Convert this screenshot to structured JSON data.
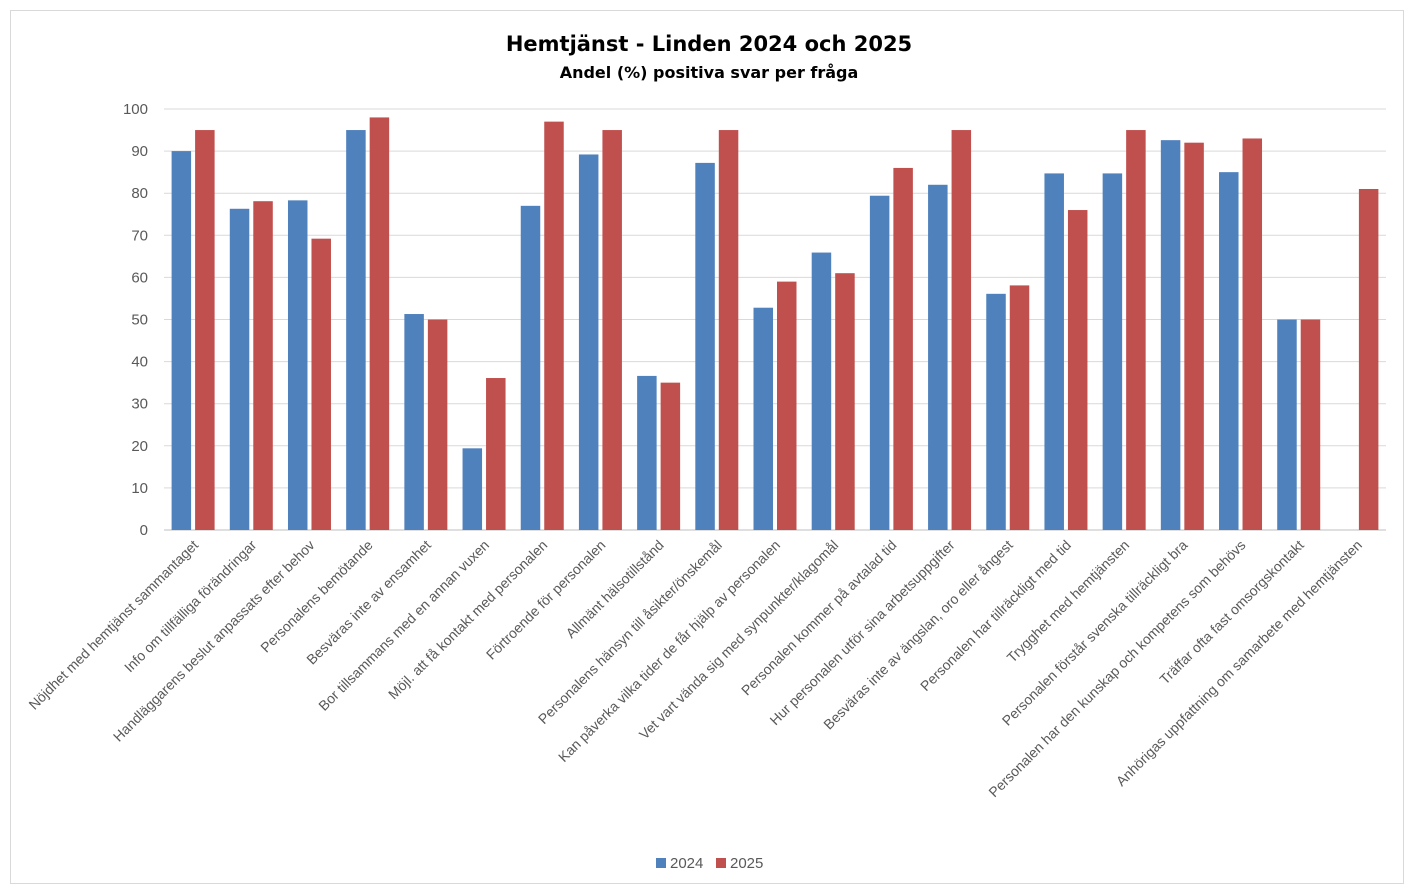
{
  "chart_data": {
    "type": "bar",
    "title": "Hemtjänst - Linden 2024 och 2025",
    "subtitle": "Andel (%) positiva svar per fråga",
    "xlabel": "",
    "ylabel": "",
    "ylim": [
      0,
      100
    ],
    "yticks": [
      "0",
      "10",
      "20",
      "30",
      "40",
      "50",
      "60",
      "70",
      "80",
      "90",
      "100"
    ],
    "grid": true,
    "legend_position": "bottom",
    "categories": [
      "Nöjdhet med hemtjänst sammantaget",
      "Info om tillfälliga förändringar",
      "Handläggarens beslut anpassats efter behov",
      "Personalens bemötande",
      "Besväras inte av ensamhet",
      "Bor tillsammans med en annan vuxen",
      "Möjl. att få kontakt med personalen",
      "Förtroende för personalen",
      "Allmänt hälsotillstånd",
      "Personalens hänsyn till åsikter/önskemål",
      "Kan påverka vilka tider de får hjälp av personalen",
      "Vet vart vända sig med synpunkter/klagomål",
      "Personalen kommer på avtalad tid",
      "Hur personalen utför sina arbetsuppgifter",
      "Besväras inte av ängslan, oro eller ångest",
      "Personalen har tillräckligt med tid",
      "Trygghet med hemtjänsten",
      "Personalen förstår svenska tillräckligt bra",
      "Personalen har den kunskap och kompetens som behövs",
      "Träffar ofta fast omsorgskontakt",
      "Anhörigas uppfattning om samarbete med hemtjänsten"
    ],
    "series": [
      {
        "name": "2024",
        "color": "#4f81bd",
        "values": [
          90,
          76.3,
          78.3,
          95,
          51.3,
          19.4,
          77,
          89.2,
          36.6,
          87.2,
          52.8,
          65.9,
          79.4,
          82,
          56.1,
          84.7,
          84.7,
          92.6,
          85,
          50,
          null
        ]
      },
      {
        "name": "2025",
        "color": "#c0504d",
        "values": [
          95,
          78.1,
          69.2,
          98,
          50,
          36.1,
          97,
          95,
          35,
          95,
          59,
          61,
          86,
          95,
          58.1,
          76,
          95,
          92,
          93,
          50,
          81
        ]
      }
    ]
  }
}
